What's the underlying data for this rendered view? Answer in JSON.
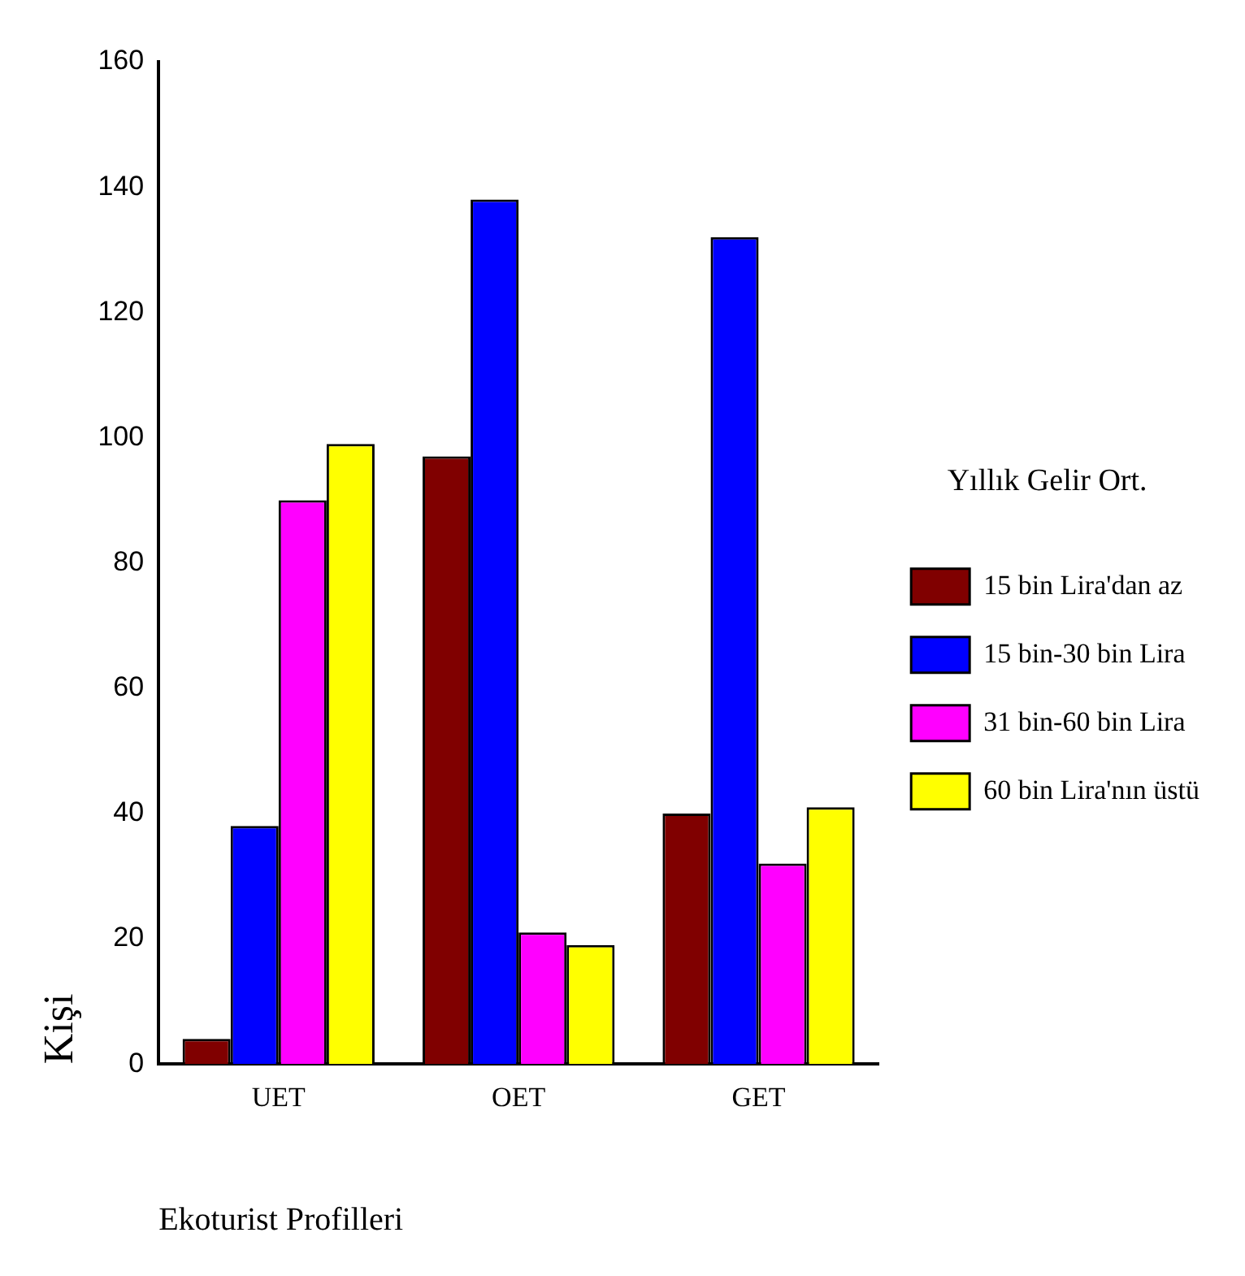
{
  "chart_data": {
    "type": "bar",
    "xlabel": "Ekoturist Profilleri",
    "ylabel": "Kişi",
    "legend_title": "Yıllık Gelir Ort.",
    "categories": [
      "UET",
      "OET",
      "GET"
    ],
    "series": [
      {
        "name": "15 bin Lira'dan az",
        "color": "#800000",
        "values": [
          4,
          97,
          40
        ]
      },
      {
        "name": "15 bin-30 bin Lira",
        "color": "#0000ff",
        "values": [
          38,
          138,
          132
        ]
      },
      {
        "name": "31 bin-60 bin Lira",
        "color": "#ff00ff",
        "values": [
          90,
          21,
          32
        ]
      },
      {
        "name": "60 bin Lira'nın üstü",
        "color": "#ffff00",
        "values": [
          99,
          19,
          41
        ]
      }
    ],
    "ylim": [
      0,
      160
    ],
    "yticks": [
      0,
      20,
      40,
      60,
      80,
      100,
      120,
      140,
      160
    ],
    "grid": false,
    "legend": "right"
  }
}
